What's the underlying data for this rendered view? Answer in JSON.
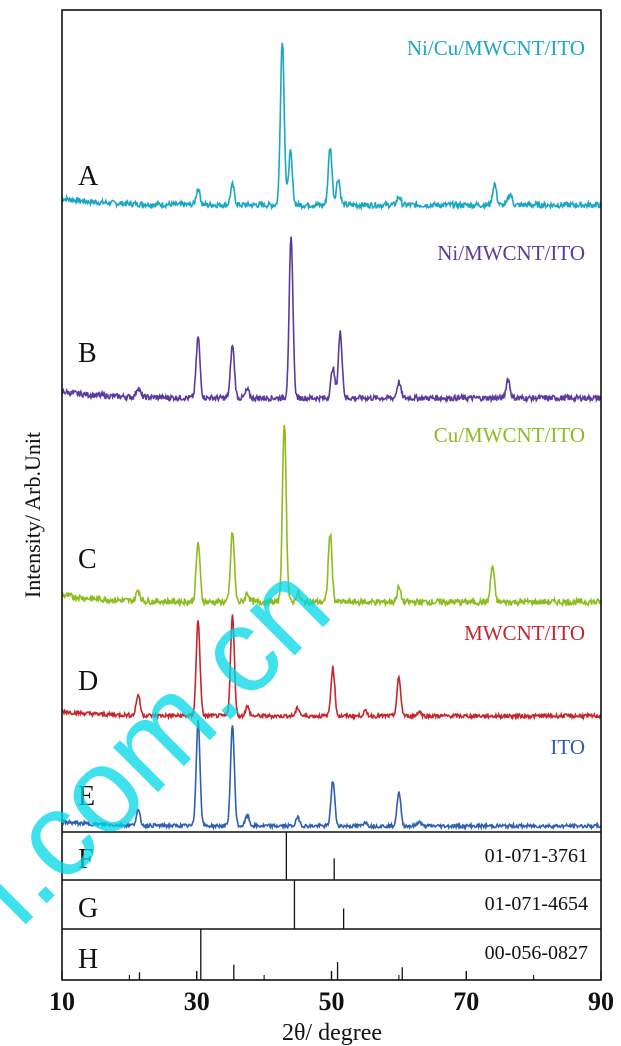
{
  "chart_data": {
    "type": "line",
    "xlabel": "2θ/ degree",
    "ylabel": "Intensity/ Arb.Unit",
    "xlim": [
      10,
      90
    ],
    "xticks": [
      10,
      30,
      50,
      70,
      90
    ],
    "xtick_labels": [
      "10",
      "30",
      "50",
      "70",
      "90"
    ],
    "grid": false,
    "series": [
      {
        "letter": "A",
        "name": "Ni/Cu/MWCNT/ITO",
        "color": "#1aa6c4",
        "peaks": [
          [
            30.2,
            0.1
          ],
          [
            35.3,
            0.12
          ],
          [
            42.7,
            1.0
          ],
          [
            43.9,
            0.32
          ],
          [
            49.8,
            0.35
          ],
          [
            51.0,
            0.16
          ],
          [
            60.0,
            0.05
          ],
          [
            74.2,
            0.13
          ],
          [
            76.5,
            0.07
          ]
        ]
      },
      {
        "letter": "B",
        "name": "Ni/MWCNT/ITO",
        "color": "#5a3a9e",
        "peaks": [
          [
            21.3,
            0.06
          ],
          [
            30.2,
            0.38
          ],
          [
            35.3,
            0.33
          ],
          [
            37.5,
            0.05
          ],
          [
            44.0,
            1.0
          ],
          [
            50.2,
            0.19
          ],
          [
            51.3,
            0.41
          ],
          [
            60.0,
            0.1
          ],
          [
            76.2,
            0.12
          ]
        ]
      },
      {
        "letter": "C",
        "name": "Cu/MWCNT/ITO",
        "color": "#8cbc1e",
        "peaks": [
          [
            21.3,
            0.06
          ],
          [
            30.2,
            0.33
          ],
          [
            35.3,
            0.39
          ],
          [
            37.5,
            0.05
          ],
          [
            43.0,
            1.0
          ],
          [
            45.0,
            0.05
          ],
          [
            49.8,
            0.38
          ],
          [
            60.0,
            0.08
          ],
          [
            73.9,
            0.2
          ]
        ]
      },
      {
        "letter": "D",
        "name": "MWCNT/ITO",
        "color": "#c3272c",
        "peaks": [
          [
            21.3,
            0.18
          ],
          [
            30.2,
            0.83
          ],
          [
            35.3,
            0.87
          ],
          [
            37.5,
            0.08
          ],
          [
            45.0,
            0.07
          ],
          [
            50.2,
            0.42
          ],
          [
            55.0,
            0.04
          ],
          [
            60.0,
            0.33
          ],
          [
            63.0,
            0.04
          ]
        ]
      },
      {
        "letter": "E",
        "name": "ITO",
        "color": "#2e5fb0",
        "peaks": [
          [
            21.3,
            0.14
          ],
          [
            30.2,
            1.0
          ],
          [
            35.3,
            0.96
          ],
          [
            37.5,
            0.1
          ],
          [
            45.0,
            0.08
          ],
          [
            50.2,
            0.43
          ],
          [
            55.0,
            0.04
          ],
          [
            60.0,
            0.32
          ],
          [
            63.0,
            0.04
          ]
        ]
      }
    ],
    "references": [
      {
        "letter": "F",
        "code": "01-071-3761",
        "lines": [
          [
            43.3,
            1.0
          ],
          [
            50.4,
            0.45
          ]
        ]
      },
      {
        "letter": "G",
        "code": "01-071-4654",
        "lines": [
          [
            44.5,
            1.0
          ],
          [
            51.8,
            0.42
          ]
        ]
      },
      {
        "letter": "H",
        "code": "00-056-0827",
        "lines": [
          [
            21.5,
            0.15
          ],
          [
            30.6,
            1.0
          ],
          [
            35.5,
            0.3
          ],
          [
            50.9,
            0.35
          ],
          [
            60.5,
            0.25
          ]
        ]
      }
    ]
  },
  "watermark": "l.com.cn"
}
